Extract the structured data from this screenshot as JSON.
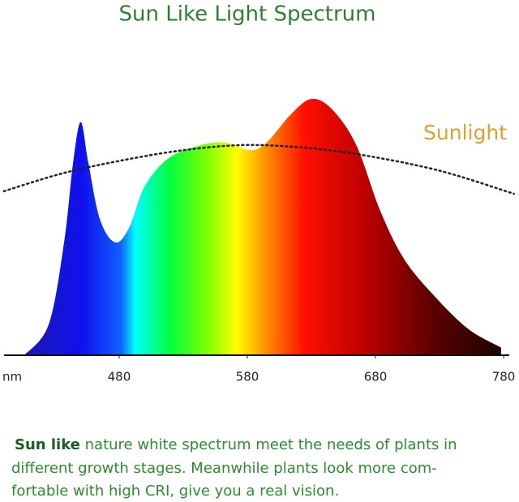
{
  "chart_data": {
    "type": "area",
    "title": "Sun Like Light Spectrum",
    "x_label": "nm",
    "xlim": [
      387,
      792
    ],
    "xticks": [
      480,
      580,
      680,
      780
    ],
    "ylim": [
      0,
      100
    ],
    "series": [
      {
        "x": [
          406,
          425,
          437,
          444,
          450,
          456,
          465,
          477,
          488,
          500,
          519,
          544,
          563,
          582,
          595,
          614,
          630,
          646,
          665,
          684,
          703,
          728,
          753,
          778
        ],
        "values": [
          0,
          12,
          44,
          75,
          91,
          75,
          53,
          44,
          50,
          66,
          77,
          82,
          83,
          80,
          83,
          94,
          100,
          96,
          82,
          56,
          37,
          22,
          10,
          3
        ]
      },
      {
        "name": "Sunlight",
        "color": "#e0a030",
        "line_color": "#222222",
        "x": [
          390,
          436,
          482,
          530,
          577,
          624,
          671,
          730,
          788
        ],
        "values": [
          64,
          71,
          76,
          80,
          82,
          81,
          78,
          72,
          63
        ]
      }
    ],
    "caption": {
      "lead": "Sun like",
      "lines": [
        "nature white spectrum meet the needs of plants in",
        "different growth stages. Meanwhile plants look more com-",
        "fortable with high CRI, give you a real vision."
      ]
    }
  }
}
